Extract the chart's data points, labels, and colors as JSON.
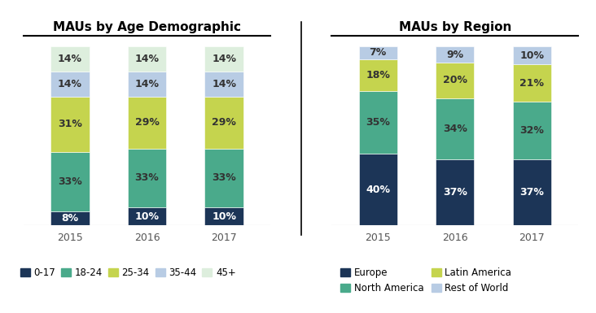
{
  "age_title": "MAUs by Age Demographic",
  "region_title": "MAUs by Region",
  "years": [
    "2015",
    "2016",
    "2017"
  ],
  "age_data": {
    "0-17": [
      8,
      10,
      10
    ],
    "18-24": [
      33,
      33,
      33
    ],
    "25-34": [
      31,
      29,
      29
    ],
    "35-44": [
      14,
      14,
      14
    ],
    "45+": [
      14,
      14,
      14
    ]
  },
  "age_colors": {
    "0-17": "#1c3557",
    "18-24": "#4aaa8b",
    "25-34": "#c5d44e",
    "35-44": "#b8cce4",
    "45+": "#ddeedd"
  },
  "region_data": {
    "Europe": [
      40,
      37,
      37
    ],
    "North America": [
      35,
      34,
      32
    ],
    "Latin America": [
      18,
      20,
      21
    ],
    "Rest of World": [
      7,
      9,
      10
    ]
  },
  "region_colors": {
    "Europe": "#1c3557",
    "North America": "#4aaa8b",
    "Latin America": "#c5d44e",
    "Rest of World": "#b8cce4"
  },
  "bar_width": 0.5,
  "background_color": "#ffffff",
  "title_fontsize": 11,
  "label_fontsize": 9,
  "tick_fontsize": 9,
  "legend_fontsize": 8.5,
  "age_label_colors": {
    "0-17": "white",
    "18-24": "#333333",
    "25-34": "#333333",
    "35-44": "#333333",
    "45+": "#333333"
  },
  "region_label_colors": {
    "Europe": "white",
    "North America": "#333333",
    "Latin America": "#333333",
    "Rest of World": "#333333"
  }
}
